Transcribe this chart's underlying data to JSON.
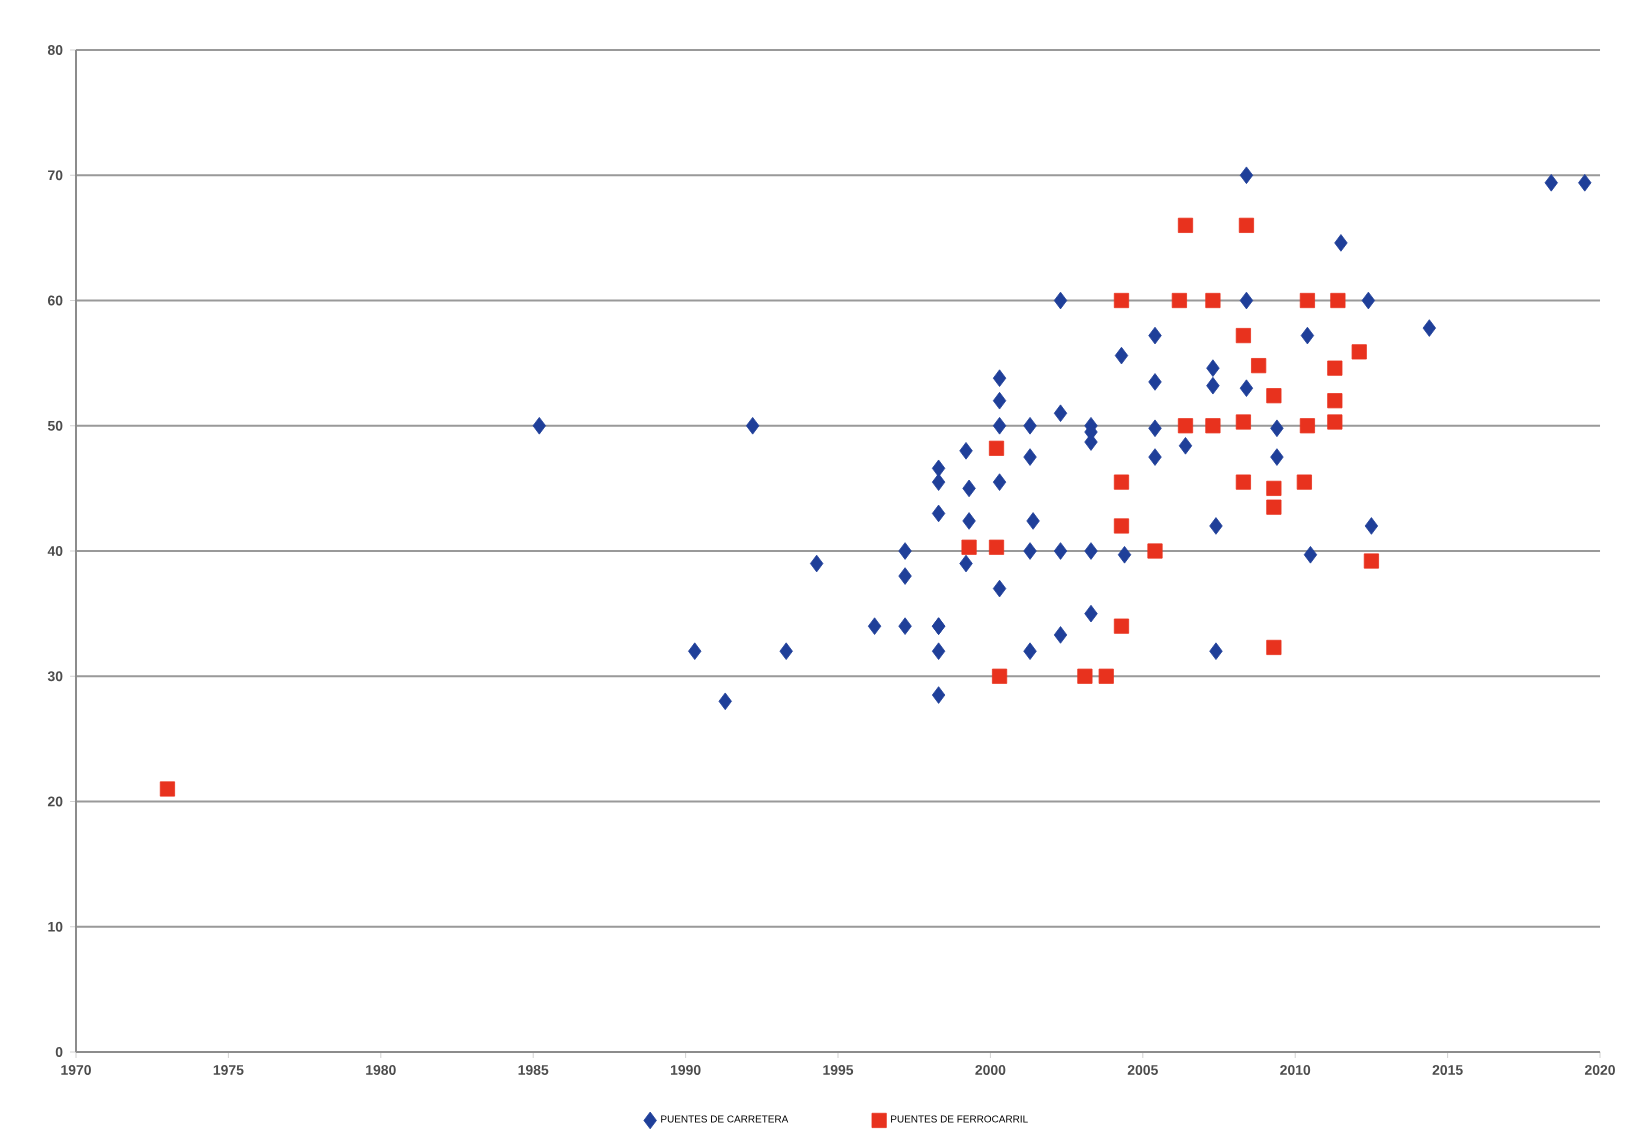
{
  "chart_data": {
    "type": "scatter",
    "xlim": [
      1970,
      2020
    ],
    "xticks": [
      1970,
      1975,
      1980,
      1985,
      1990,
      1995,
      2000,
      2005,
      2010,
      2015,
      2020
    ],
    "ylim": [
      0,
      80
    ],
    "yticks": [
      0,
      10,
      20,
      30,
      40,
      50,
      60,
      70,
      80
    ],
    "grid": "y",
    "legend": "bottom",
    "series": [
      {
        "name": "PUENTES DE CARRETERA",
        "color": "#1f3f99",
        "marker": "diamond",
        "x": [
          1985.2,
          1990.3,
          1991.3,
          1992.2,
          1993.3,
          1994.3,
          1996.2,
          1997.2,
          1997.2,
          1997.2,
          1998.3,
          1998.3,
          1998.3,
          1998.3,
          1998.3,
          1998.3,
          1998.3,
          1999.2,
          1999.2,
          1999.3,
          1999.3,
          2000.3,
          2000.3,
          2000.3,
          2000.3,
          2000.3,
          2001.3,
          2001.3,
          2001.4,
          2001.3,
          2001.3,
          2002.3,
          2002.3,
          2002.3,
          2002.3,
          2003.3,
          2003.3,
          2003.3,
          2003.3,
          2003.3,
          2004.3,
          2004.4,
          2005.4,
          2005.4,
          2005.4,
          2005.4,
          2006.4,
          2007.3,
          2007.3,
          2007.4,
          2007.4,
          2008.4,
          2008.4,
          2008.4,
          2009.4,
          2009.4,
          2010.4,
          2010.5,
          2011.5,
          2012.4,
          2012.5,
          2014.4,
          2018.4,
          2019.5
        ],
        "values": [
          50,
          32,
          28,
          50,
          32,
          39,
          34,
          34,
          38,
          40,
          34,
          32,
          28.5,
          43,
          46.6,
          45.5,
          34,
          48,
          39,
          45,
          42.4,
          53.8,
          52,
          50,
          45.5,
          37,
          50,
          47.5,
          42.4,
          40,
          32,
          60,
          51,
          40,
          33.3,
          50,
          48.7,
          40,
          35,
          49.5,
          55.6,
          39.7,
          57.2,
          53.5,
          49.8,
          47.5,
          48.4,
          54.6,
          53.2,
          42,
          32,
          70,
          60,
          53,
          49.8,
          47.5,
          57.2,
          39.7,
          64.6,
          60,
          42,
          57.8,
          69.4,
          69.4
        ]
      },
      {
        "name": "PUENTES DE FERROCARRIL",
        "color": "#e8321e",
        "marker": "square",
        "x": [
          1973,
          1999.3,
          2000.2,
          2000.2,
          2000.3,
          2003.1,
          2003.8,
          2004.3,
          2004.3,
          2004.3,
          2004.3,
          2005.4,
          2006.4,
          2006.2,
          2006.4,
          2007.3,
          2007.3,
          2008.3,
          2008.3,
          2008.3,
          2008.4,
          2008.8,
          2009.3,
          2009.3,
          2009.3,
          2009.3,
          2010.3,
          2010.4,
          2010.4,
          2011.3,
          2011.3,
          2011.3,
          2011.4,
          2012.1,
          2012.5
        ],
        "values": [
          21,
          40.3,
          48.2,
          40.3,
          30,
          30,
          30,
          60,
          45.5,
          42,
          34,
          40,
          66,
          60,
          50,
          60,
          50,
          57.2,
          50.3,
          45.5,
          66,
          54.8,
          52.4,
          45,
          43.5,
          32.3,
          45.5,
          60,
          50,
          54.6,
          52,
          50.3,
          60,
          55.9,
          39.2
        ]
      }
    ]
  }
}
